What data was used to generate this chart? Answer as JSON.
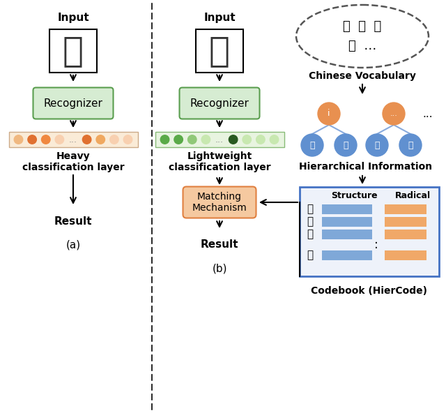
{
  "bg_color": "#ffffff",
  "green_box_color": "#d6ecd2",
  "green_box_edge": "#5a9e4f",
  "orange_box_color": "#f5c9a0",
  "orange_box_edge": "#e08040",
  "codebook_bg": "#eef2fa",
  "blue_box_edge": "#4472c4",
  "blue_bar_color": "#7fa8d8",
  "orange_bar_color": "#f0a868",
  "orange_node_color": "#e89050",
  "blue_node_color": "#6090d0",
  "dot_orange": [
    "#e07030",
    "#e07030",
    "#f0a060",
    "#f8d8c0",
    "#e07030",
    "#f0b080",
    "#f8d8c0",
    "#f8d8c0"
  ],
  "dot_green": [
    "#5aaa48",
    "#5aaa48",
    "#90c878",
    "#5aaa48",
    "#b8dca8",
    "#b8dca8",
    "#b8dca8"
  ],
  "edge_color": "#88aadd",
  "dashed_color": "#555555",
  "title_a": "(a)",
  "title_b": "(b)",
  "label_input": "Input",
  "label_recognizer": "Recognizer",
  "label_heavy": "Heavy\nclassification layer",
  "label_lightweight": "Lightweight\nclassification layer",
  "label_result": "Result",
  "label_matching": "Matching\nMechanism",
  "label_vocab": "Chinese Vocabulary",
  "label_hier": "Hierarchical Information",
  "label_codebook": "Codebook (HierCode)",
  "label_structure": "Structure",
  "label_radical": "Radical",
  "codebook_chars": [
    "欢",
    "好",
    "次",
    "思"
  ],
  "blue_leaf_chars": [
    "又",
    "欠",
    "田",
    "心"
  ],
  "vocab_line1": "好  次  欢",
  "vocab_line2": "思  …"
}
